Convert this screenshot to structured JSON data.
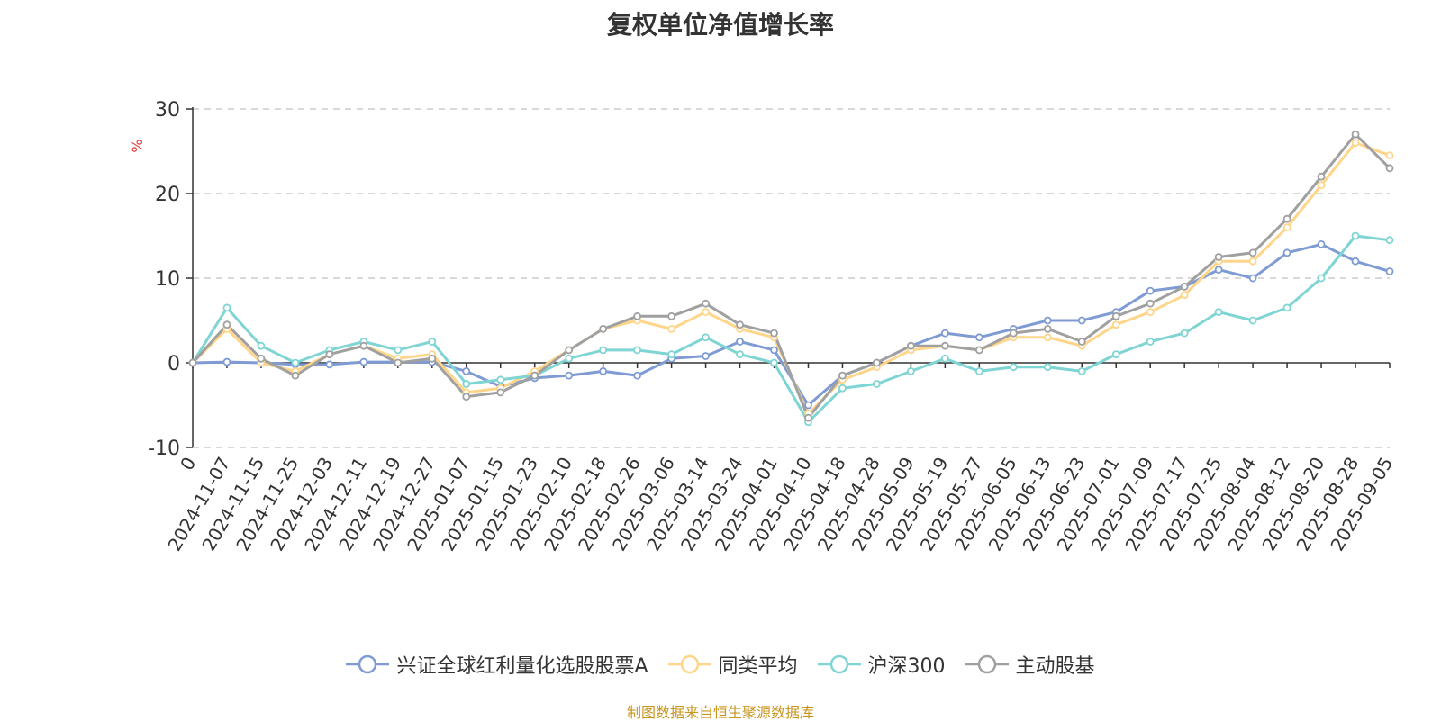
{
  "chart_data": {
    "type": "line",
    "title": "复权单位净值增长率",
    "ylabel": "%",
    "ylim": [
      -10,
      30
    ],
    "yticks": [
      -10,
      0,
      10,
      20,
      30
    ],
    "grid": true,
    "legend_position": "bottom",
    "x_tick_labels": [
      "0",
      "2024-11-07",
      "2024-11-15",
      "2024-11-25",
      "2024-12-03",
      "2024-12-11",
      "2024-12-19",
      "2024-12-27",
      "2025-01-07",
      "2025-01-15",
      "2025-01-23",
      "2025-02-10",
      "2025-02-18",
      "2025-02-26",
      "2025-03-06",
      "2025-03-14",
      "2025-03-24",
      "2025-04-01",
      "2025-04-10",
      "2025-04-18",
      "2025-04-28",
      "2025-05-09",
      "2025-05-19",
      "2025-05-27",
      "2025-06-05",
      "2025-06-13",
      "2025-06-23",
      "2025-07-01",
      "2025-07-09",
      "2025-07-17",
      "2025-07-25",
      "2025-08-04",
      "2025-08-12",
      "2025-08-20",
      "2025-08-28",
      "2025-09-05"
    ],
    "series": [
      {
        "name": "兴证全球红利量化选股股票A",
        "color": "#7f9bd4",
        "values": [
          0,
          0.1,
          0,
          -0.2,
          -0.2,
          0.1,
          0.1,
          0.1,
          -1,
          -2.8,
          -1.8,
          -1.5,
          -1,
          -1.5,
          0.5,
          0.8,
          2.5,
          1.5,
          -5,
          -1.5,
          0,
          2,
          3.5,
          3,
          4,
          5,
          5,
          6,
          8.5,
          9,
          11,
          10,
          13,
          14,
          12,
          10.8
        ]
      },
      {
        "name": "同类平均",
        "color": "#ffd58a",
        "values": [
          0,
          4,
          0,
          -1,
          1,
          2,
          0.5,
          1,
          -3.5,
          -3,
          -1,
          1.5,
          4,
          5,
          4,
          6,
          4,
          3,
          -6,
          -2,
          -0.5,
          1.5,
          2,
          1.5,
          3,
          3,
          2,
          4.5,
          6,
          8,
          12,
          12,
          16,
          21,
          26,
          24.5
        ]
      },
      {
        "name": "沪深300",
        "color": "#7fd4d4",
        "values": [
          0,
          6.5,
          2,
          0,
          1.5,
          2.5,
          1.5,
          2.5,
          -2.5,
          -2,
          -1.5,
          0.5,
          1.5,
          1.5,
          1,
          3,
          1,
          0,
          -7,
          -3,
          -2.5,
          -1,
          0.5,
          -1,
          -0.5,
          -0.5,
          -1,
          1,
          2.5,
          3.5,
          6,
          5,
          6.5,
          10,
          15,
          14.5
        ]
      },
      {
        "name": "主动股基",
        "color": "#a0a0a0",
        "values": [
          0,
          4.5,
          0.5,
          -1.5,
          1,
          2,
          0,
          0.5,
          -4,
          -3.5,
          -1.5,
          1.5,
          4,
          5.5,
          5.5,
          7,
          4.5,
          3.5,
          -6.5,
          -1.5,
          0,
          2,
          2,
          1.5,
          3.5,
          4,
          2.5,
          5.5,
          7,
          9,
          12.5,
          13,
          17,
          22,
          27,
          23
        ]
      }
    ]
  },
  "legend_items": [
    {
      "label": "兴证全球红利量化选股股票A"
    },
    {
      "label": "同类平均"
    },
    {
      "label": "沪深300"
    },
    {
      "label": "主动股基"
    }
  ],
  "source_note": "制图数据来自恒生聚源数据库"
}
